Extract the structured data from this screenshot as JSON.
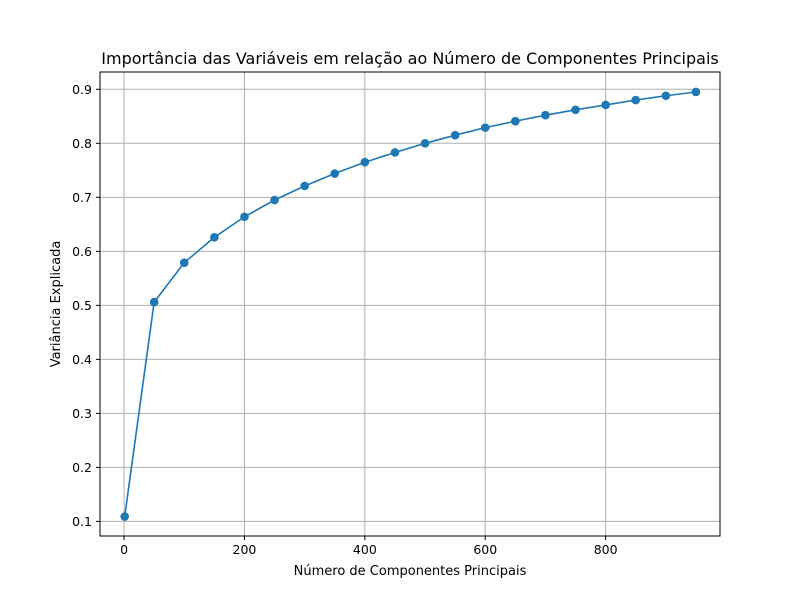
{
  "chart_data": {
    "type": "line",
    "title": "Importância das Variáveis em relação ao Número de Componentes Principais",
    "xlabel": "Número de Componentes Principais",
    "ylabel": "Variância Explicada",
    "xlim": [
      -40,
      990
    ],
    "ylim": [
      0.073,
      0.932
    ],
    "xticks": [
      0,
      200,
      400,
      600,
      800
    ],
    "yticks": [
      0.1,
      0.2,
      0.3,
      0.4,
      0.5,
      0.6,
      0.7,
      0.8,
      0.9
    ],
    "grid": true,
    "color": "#1f77b4",
    "series": [
      {
        "x": [
          1,
          50,
          100,
          150,
          200,
          250,
          300,
          350,
          400,
          450,
          500,
          550,
          600,
          650,
          700,
          750,
          800,
          850,
          900,
          950
        ],
        "values": [
          0.109,
          0.506,
          0.579,
          0.626,
          0.664,
          0.695,
          0.721,
          0.744,
          0.765,
          0.783,
          0.8,
          0.815,
          0.829,
          0.841,
          0.852,
          0.862,
          0.871,
          0.88,
          0.888,
          0.895
        ]
      }
    ]
  }
}
